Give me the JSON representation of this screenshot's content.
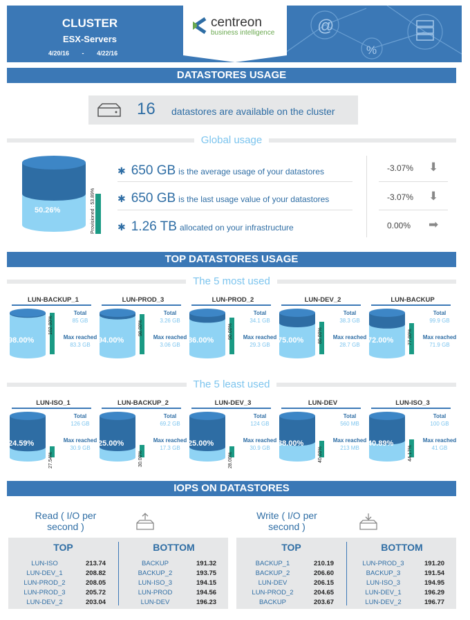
{
  "header": {
    "title": "CLUSTER",
    "subtitle": "ESX-Servers",
    "date_from": "4/20/16",
    "date_sep": "-",
    "date_to": "4/22/16",
    "logo_name": "centreon",
    "logo_tag": "business intelligence"
  },
  "sections": {
    "datastores_usage": "DATASTORES USAGE",
    "global_usage": "Global usage",
    "top_usage": "TOP DATASTORES USAGE",
    "most_used": "The 5 most used",
    "least_used": "The 5 least used",
    "iops": "IOPS ON DATASTORES"
  },
  "summary": {
    "count": "16",
    "text": "datastores are available on the cluster"
  },
  "global": {
    "usage_pct": "50.26%",
    "allocated_label": "Provisioned : 53.89%",
    "lines": [
      {
        "value": "650 GB",
        "text": "is the average usage of your datastores",
        "delta": "-3.07%",
        "trend": "down"
      },
      {
        "value": "650 GB",
        "text": "is the last usage value of your datastores",
        "delta": "-3.07%",
        "trend": "down"
      },
      {
        "value": "1.26 TB",
        "text": "allocated on your infrastructure",
        "delta": "0.00%",
        "trend": "flat"
      }
    ]
  },
  "labels": {
    "total": "Total",
    "max": "Max reached"
  },
  "most_used": [
    {
      "name": "LUN-BACKUP_1",
      "pct": "98.00%",
      "fill": 0.98,
      "alloc": "102.00%",
      "total": "85 GB",
      "max": "83.3 GB"
    },
    {
      "name": "LUN-PROD_3",
      "pct": "94.00%",
      "fill": 0.94,
      "alloc": "98.00%",
      "total": "3.26 GB",
      "max": "3.06 GB"
    },
    {
      "name": "LUN-PROD_2",
      "pct": "86.00%",
      "fill": 0.86,
      "alloc": "90.00%",
      "total": "34.1 GB",
      "max": "29.3 GB"
    },
    {
      "name": "LUN-DEV_2",
      "pct": "75.00%",
      "fill": 0.75,
      "alloc": "80.00%",
      "total": "38.3 GB",
      "max": "28.7 GB"
    },
    {
      "name": "LUN-BACKUP",
      "pct": "72.00%",
      "fill": 0.72,
      "alloc": "77.00%",
      "total": "99.9 GB",
      "max": "71.9 GB"
    }
  ],
  "least_used": [
    {
      "name": "LUN-ISO_1",
      "pct": "24.59%",
      "fill": 0.2459,
      "alloc": "27.54%",
      "total": "126 GB",
      "max": "30.9 GB"
    },
    {
      "name": "LUN-BACKUP_2",
      "pct": "25.00%",
      "fill": 0.25,
      "alloc": "30.00%",
      "total": "69.2 GB",
      "max": "17.3 GB"
    },
    {
      "name": "LUN-DEV_3",
      "pct": "25.00%",
      "fill": 0.25,
      "alloc": "28.00%",
      "total": "124 GB",
      "max": "30.9 GB"
    },
    {
      "name": "LUN-DEV",
      "pct": "38.00%",
      "fill": 0.38,
      "alloc": "40.00%",
      "total": "560 MB",
      "max": "213 MB"
    },
    {
      "name": "LUN-ISO_3",
      "pct": "40.89%",
      "fill": 0.4089,
      "alloc": "44.17%",
      "total": "100 GB",
      "max": "41 GB"
    }
  ],
  "iops": {
    "read_title_1": "Read ( I/O per",
    "read_title_2": "second )",
    "write_title_1": "Write ( I/O per",
    "write_title_2": "second )",
    "top_label": "TOP",
    "bottom_label": "BOTTOM",
    "read_top": [
      {
        "name": "LUN-ISO",
        "value": "213.74"
      },
      {
        "name": "LUN-DEV_1",
        "value": "208.82"
      },
      {
        "name": "LUN-PROD_2",
        "value": "208.05"
      },
      {
        "name": "LUN-PROD_3",
        "value": "205.72"
      },
      {
        "name": "LUN-DEV_2",
        "value": "203.04"
      }
    ],
    "read_bottom": [
      {
        "name": "BACKUP",
        "value": "191.32"
      },
      {
        "name": "BACKUP_2",
        "value": "193.75"
      },
      {
        "name": "LUN-ISO_3",
        "value": "194.15"
      },
      {
        "name": "LUN-PROD",
        "value": "194.56"
      },
      {
        "name": "LUN-DEV",
        "value": "196.23"
      }
    ],
    "write_top": [
      {
        "name": "BACKUP_1",
        "value": "210.19"
      },
      {
        "name": "BACKUP_2",
        "value": "206.60"
      },
      {
        "name": "LUN-DEV",
        "value": "206.15"
      },
      {
        "name": "LUN-PROD_2",
        "value": "204.65"
      },
      {
        "name": "BACKUP",
        "value": "203.67"
      }
    ],
    "write_bottom": [
      {
        "name": "LUN-PROD_3",
        "value": "191.20"
      },
      {
        "name": "BACKUP_3",
        "value": "191.54"
      },
      {
        "name": "LUN-ISO_3",
        "value": "194.95"
      },
      {
        "name": "LUN-DEV_1",
        "value": "196.29"
      },
      {
        "name": "LUN-DEV_2",
        "value": "196.77"
      }
    ]
  },
  "colors": {
    "primary": "#3b78b6",
    "light": "#7cc4ee",
    "allocated": "#1a9a84",
    "panel": "#e6e7e8"
  }
}
